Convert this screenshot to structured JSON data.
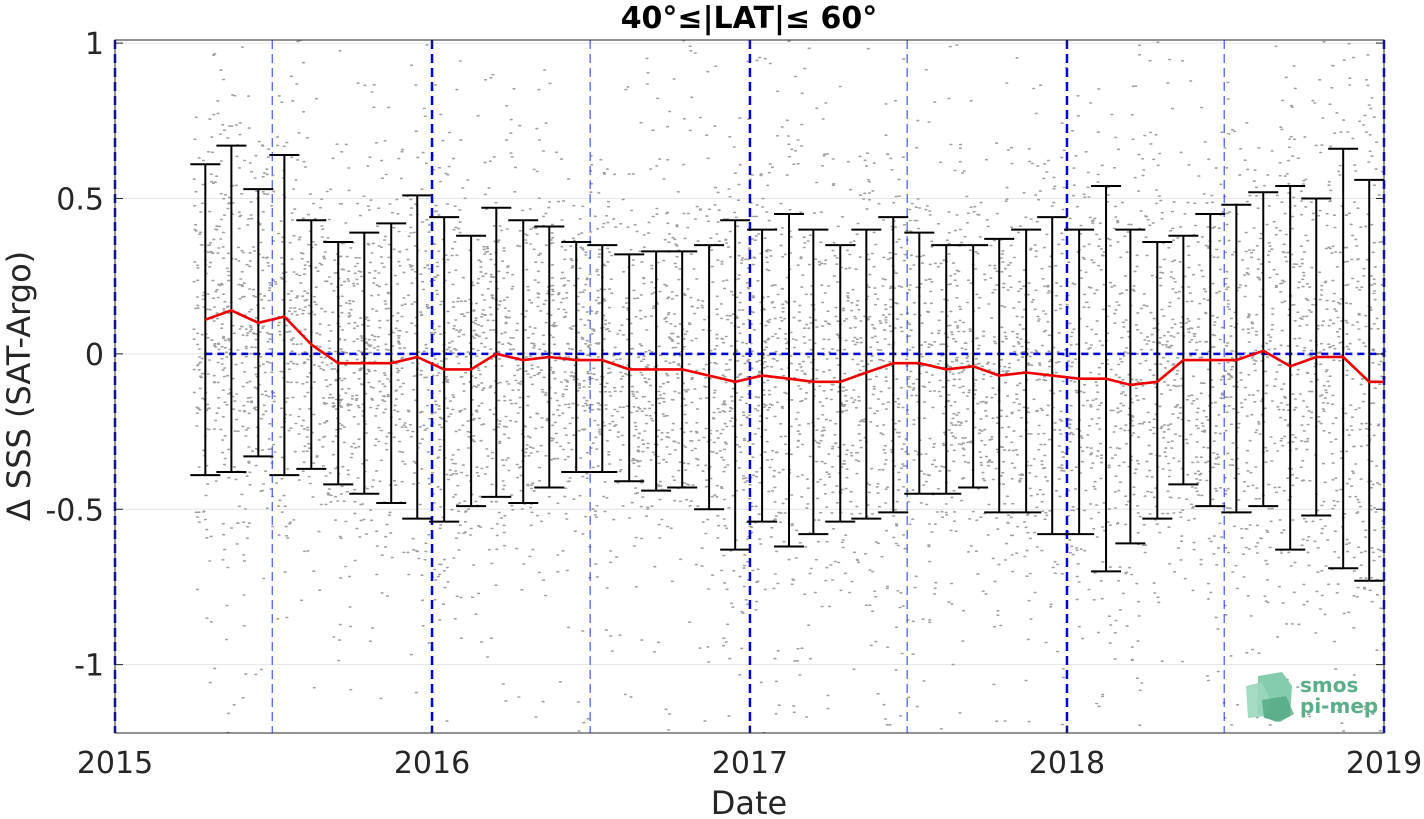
{
  "chart_data": {
    "type": "scatter",
    "title": "40°≤|LAT|≤ 60°",
    "xlabel": "Date",
    "ylabel": "Δ SSS (SAT-Argo)",
    "xlim": [
      "2015-01-01",
      "2019-01-01"
    ],
    "ylim": [
      -1.22,
      1.01
    ],
    "x_ticks": [
      {
        "value": "2015-01-01",
        "label": "2015"
      },
      {
        "value": "2016-01-01",
        "label": "2016"
      },
      {
        "value": "2017-01-01",
        "label": "2017"
      },
      {
        "value": "2018-01-01",
        "label": "2018"
      },
      {
        "value": "2019-01-01",
        "label": "2019"
      }
    ],
    "y_ticks": [
      {
        "value": 1,
        "label": "1"
      },
      {
        "value": 0.5,
        "label": "0.5"
      },
      {
        "value": 0,
        "label": "0"
      },
      {
        "value": -0.5,
        "label": "-0.5"
      },
      {
        "value": -1,
        "label": "-1"
      }
    ],
    "grid": true,
    "reference_line": {
      "value": 0,
      "color": "#0000dd",
      "style": "dashed"
    },
    "year_lines": [
      "2015-01-01",
      "2016-01-01",
      "2017-01-01",
      "2018-01-01",
      "2019-01-01"
    ],
    "midyear_lines": [
      "2015-07-01",
      "2016-07-01",
      "2017-07-01",
      "2018-07-01"
    ],
    "scatter": {
      "description": "Individual SAT-Argo match-up differences",
      "color": "#808080",
      "x_range": [
        "2015-04-01",
        "2019-01-01"
      ]
    },
    "monthly": {
      "dates": [
        "2015-04-15",
        "2015-05-15",
        "2015-06-15",
        "2015-07-15",
        "2015-08-15",
        "2015-09-15",
        "2015-10-15",
        "2015-11-15",
        "2015-12-15",
        "2016-01-15",
        "2016-02-15",
        "2016-03-15",
        "2016-04-15",
        "2016-05-15",
        "2016-06-15",
        "2016-07-15",
        "2016-08-15",
        "2016-09-15",
        "2016-10-15",
        "2016-11-15",
        "2016-12-15",
        "2017-01-15",
        "2017-02-15",
        "2017-03-15",
        "2017-04-15",
        "2017-05-15",
        "2017-06-15",
        "2017-07-15",
        "2017-08-15",
        "2017-09-15",
        "2017-10-15",
        "2017-11-15",
        "2017-12-15",
        "2018-01-15",
        "2018-02-15",
        "2018-03-15",
        "2018-04-15",
        "2018-05-15",
        "2018-06-15",
        "2018-07-15",
        "2018-08-15",
        "2018-09-15",
        "2018-10-15",
        "2018-11-15",
        "2018-12-15"
      ],
      "mean": [
        0.11,
        0.14,
        0.1,
        0.12,
        0.03,
        -0.03,
        -0.03,
        -0.03,
        -0.01,
        -0.05,
        -0.05,
        0.0,
        -0.02,
        -0.01,
        -0.02,
        -0.02,
        -0.05,
        -0.05,
        -0.05,
        -0.07,
        -0.09,
        -0.07,
        -0.08,
        -0.09,
        -0.09,
        -0.06,
        -0.03,
        -0.03,
        -0.05,
        -0.04,
        -0.07,
        -0.06,
        -0.07,
        -0.08,
        -0.08,
        -0.1,
        -0.09,
        -0.02,
        -0.02,
        -0.02,
        0.01,
        -0.04,
        -0.01,
        -0.01,
        -0.09
      ],
      "upper": [
        0.61,
        0.67,
        0.53,
        0.64,
        0.43,
        0.36,
        0.39,
        0.42,
        0.51,
        0.44,
        0.38,
        0.47,
        0.43,
        0.41,
        0.36,
        0.35,
        0.32,
        0.33,
        0.33,
        0.35,
        0.43,
        0.4,
        0.45,
        0.4,
        0.35,
        0.4,
        0.44,
        0.39,
        0.35,
        0.35,
        0.37,
        0.4,
        0.44,
        0.4,
        0.54,
        0.4,
        0.36,
        0.38,
        0.45,
        0.48,
        0.52,
        0.54,
        0.5,
        0.66,
        0.56
      ],
      "lower": [
        -0.39,
        -0.38,
        -0.33,
        -0.39,
        -0.37,
        -0.42,
        -0.45,
        -0.48,
        -0.53,
        -0.54,
        -0.49,
        -0.46,
        -0.48,
        -0.43,
        -0.38,
        -0.38,
        -0.41,
        -0.44,
        -0.43,
        -0.5,
        -0.63,
        -0.54,
        -0.62,
        -0.58,
        -0.54,
        -0.53,
        -0.51,
        -0.45,
        -0.45,
        -0.43,
        -0.51,
        -0.51,
        -0.58,
        -0.58,
        -0.7,
        -0.61,
        -0.53,
        -0.42,
        -0.49,
        -0.51,
        -0.49,
        -0.63,
        -0.52,
        -0.69,
        -0.73
      ]
    },
    "mean_color": "#ee0000",
    "errorbar_color": "#000000"
  },
  "logo": {
    "line1": "smos",
    "line2": "pi-mep",
    "color": "#5aae8a"
  }
}
